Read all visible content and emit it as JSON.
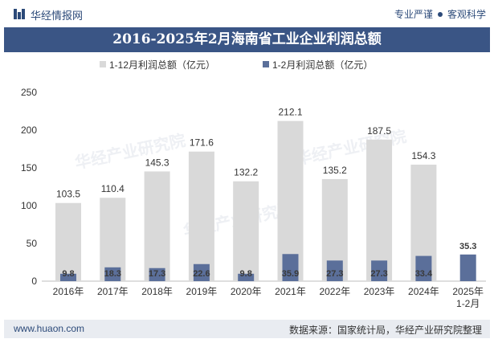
{
  "header": {
    "brand": "华经情报网",
    "slogan_left": "专业严谨",
    "slogan_right": "客观科学"
  },
  "title": "2016-2025年2月海南省工业企业利润总额",
  "footer": {
    "url": "www.huaon.com",
    "source": "数据来源：国家统计局，华经产业研究院整理"
  },
  "watermark": "华经产业研究院",
  "colors": {
    "series1": "#d9d9d9",
    "series2": "#5b6f9a",
    "title_bg": "#3a5585",
    "footer_bg": "#e9ecf1"
  },
  "chart_data": {
    "type": "bar",
    "categories": [
      "2016年",
      "2017年",
      "2018年",
      "2019年",
      "2020年",
      "2021年",
      "2022年",
      "2023年",
      "2024年",
      "2025年\n1-2月"
    ],
    "series": [
      {
        "name": "1-12月利润总额（亿元）",
        "values": [
          103.5,
          110.4,
          145.3,
          171.6,
          132.2,
          212.1,
          135.2,
          187.5,
          154.3,
          null
        ]
      },
      {
        "name": "1-2月利润总额（亿元）",
        "values": [
          9.8,
          18.3,
          17.3,
          22.6,
          9.8,
          35.9,
          27.3,
          27.3,
          33.4,
          35.3
        ]
      }
    ],
    "yticks": [
      0,
      50,
      100,
      150,
      200,
      250
    ],
    "ylim": [
      0,
      250
    ],
    "legend_position": "top-center",
    "grid": false
  }
}
